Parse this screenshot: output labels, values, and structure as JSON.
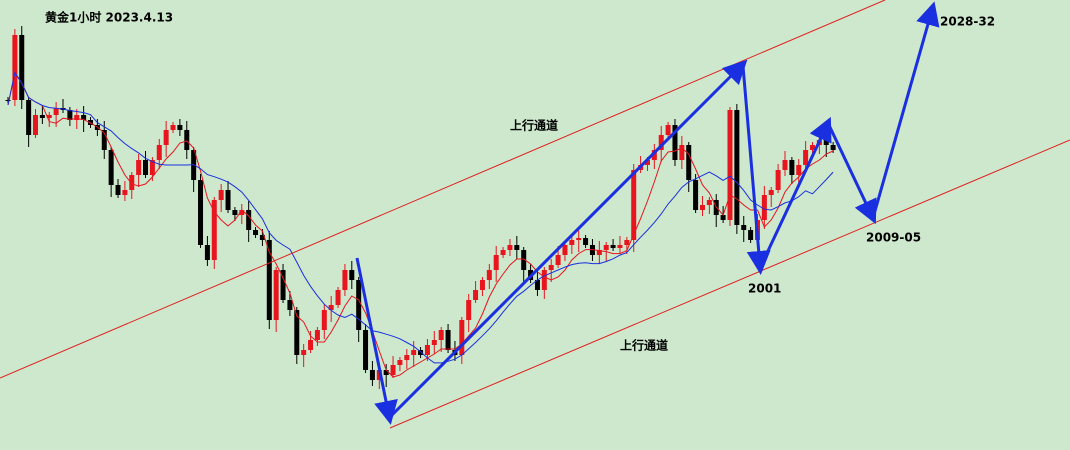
{
  "header": {
    "title": "黄金1小时 2023.4.13"
  },
  "annotations": {
    "upper_channel": "上行通道",
    "lower_channel": "上行通道",
    "low_level": "2001",
    "target_mid": "2009-05",
    "target_high": "2028-32"
  }
}
